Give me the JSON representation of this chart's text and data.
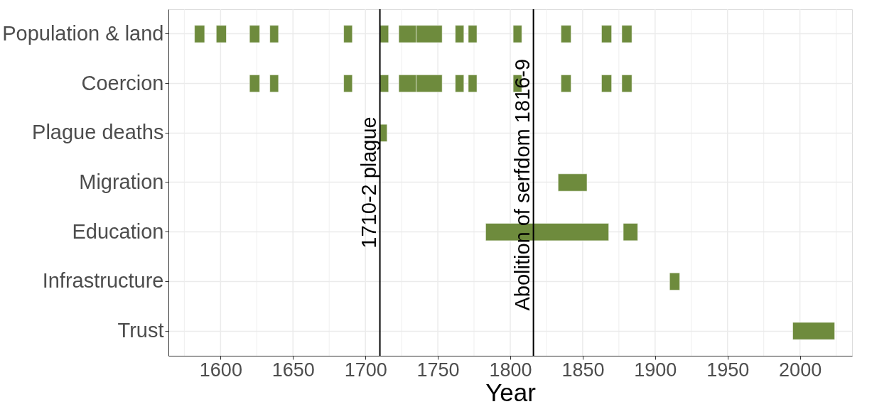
{
  "chart_data": {
    "type": "bar",
    "orientation": "horizontal",
    "xlabel": "Year",
    "categories": [
      "Population & land",
      "Coercion",
      "Plague deaths",
      "Migration",
      "Education",
      "Infrastructure",
      "Trust"
    ],
    "series": [
      {
        "color": "#6e8b3d",
        "base": [
          1582,
          1620,
          1710,
          1833,
          1783,
          1910,
          1995
        ],
        "values": [
          7,
          7,
          5,
          20,
          85,
          7,
          29
        ]
      },
      {
        "color": "#6e8b3d",
        "base": [
          1597,
          1634,
          null,
          null,
          1878,
          null,
          null
        ],
        "values": [
          7,
          6,
          null,
          null,
          10,
          null,
          null
        ]
      },
      {
        "color": "#6e8b3d",
        "base": [
          1620,
          1685,
          null,
          null,
          null,
          null,
          null
        ],
        "values": [
          7,
          6,
          null,
          null,
          null,
          null,
          null
        ]
      },
      {
        "color": "#6e8b3d",
        "base": [
          1634,
          1710,
          null,
          null,
          null,
          null,
          null
        ],
        "values": [
          6,
          6,
          null,
          null,
          null,
          null,
          null
        ]
      },
      {
        "color": "#6e8b3d",
        "base": [
          1685,
          1723,
          null,
          null,
          null,
          null,
          null
        ],
        "values": [
          6,
          12,
          null,
          null,
          null,
          null,
          null
        ]
      },
      {
        "color": "#6e8b3d",
        "base": [
          1710,
          1735,
          null,
          null,
          null,
          null,
          null
        ],
        "values": [
          6,
          18,
          null,
          null,
          null,
          null,
          null
        ]
      },
      {
        "color": "#6e8b3d",
        "base": [
          1723,
          1762,
          null,
          null,
          null,
          null,
          null
        ],
        "values": [
          12,
          6,
          null,
          null,
          null,
          null,
          null
        ]
      },
      {
        "color": "#6e8b3d",
        "base": [
          1735,
          1771,
          null,
          null,
          null,
          null,
          null
        ],
        "values": [
          18,
          6,
          null,
          null,
          null,
          null,
          null
        ]
      },
      {
        "color": "#6e8b3d",
        "base": [
          1762,
          1802,
          null,
          null,
          null,
          null,
          null
        ],
        "values": [
          6,
          6,
          null,
          null,
          null,
          null,
          null
        ]
      },
      {
        "color": "#6e8b3d",
        "base": [
          1771,
          1835,
          null,
          null,
          null,
          null,
          null
        ],
        "values": [
          6,
          7,
          null,
          null,
          null,
          null,
          null
        ]
      },
      {
        "color": "#6e8b3d",
        "base": [
          1802,
          1863,
          null,
          null,
          null,
          null,
          null
        ],
        "values": [
          6,
          7,
          null,
          null,
          null,
          null,
          null
        ]
      },
      {
        "color": "#6e8b3d",
        "base": [
          1835,
          1877,
          null,
          null,
          null,
          null,
          null
        ],
        "values": [
          7,
          7,
          null,
          null,
          null,
          null,
          null
        ]
      },
      {
        "color": "#6e8b3d",
        "base": [
          1863,
          null,
          null,
          null,
          null,
          null,
          null
        ],
        "values": [
          7,
          null,
          null,
          null,
          null,
          null,
          null
        ]
      },
      {
        "color": "#6e8b3d",
        "base": [
          1877,
          null,
          null,
          null,
          null,
          null,
          null
        ],
        "values": [
          7,
          null,
          null,
          null,
          null,
          null,
          null
        ]
      }
    ],
    "xlim": [
      1564,
      2036
    ],
    "xticks": [
      {
        "value": 1575,
        "label": null
      },
      1600,
      {
        "value": 1625,
        "label": null
      },
      1650,
      {
        "value": 1675,
        "label": null
      },
      1700,
      {
        "value": 1725,
        "label": null
      },
      1750,
      {
        "value": 1775,
        "label": null
      },
      1800,
      {
        "value": 1825,
        "label": null
      },
      1850,
      {
        "value": 1875,
        "label": null
      },
      1900,
      {
        "value": 1925,
        "label": null
      },
      1950,
      {
        "value": 1975,
        "label": null
      },
      2000,
      {
        "value": 2025,
        "label": null
      }
    ],
    "ref_lines": [
      {
        "axis": "x",
        "value": 1710,
        "label": "1710-2 plague",
        "color": "#000000"
      },
      {
        "axis": "x",
        "value": 1816,
        "label": "Abolition of serfdom 1816-9",
        "color": "#000000"
      }
    ],
    "grid": true,
    "legend": false
  }
}
